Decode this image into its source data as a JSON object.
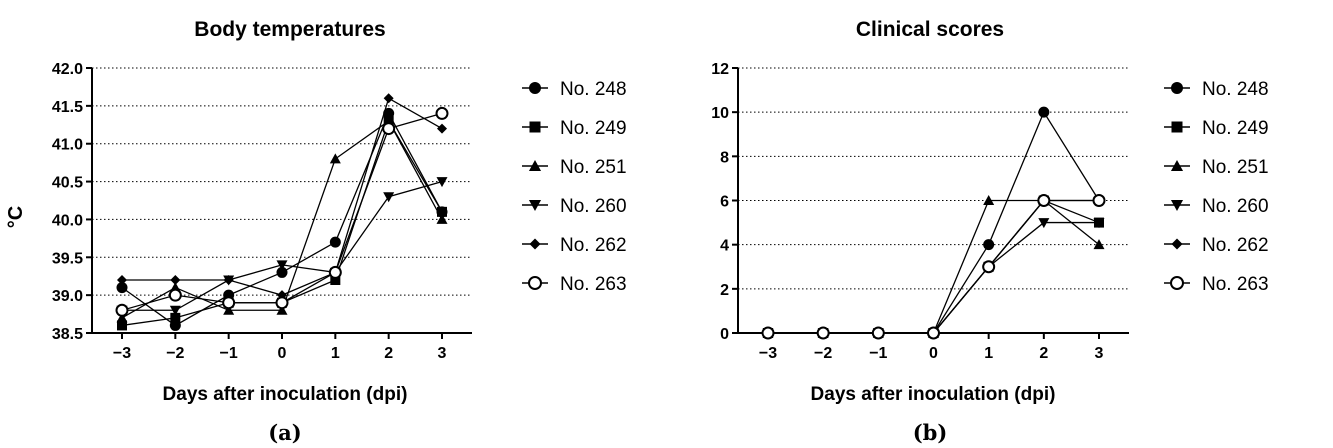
{
  "chart_data": [
    {
      "type": "line",
      "title": "Body temperatures",
      "xlabel": "Days after inoculation (dpi)",
      "ylabel": "°C",
      "caption": "(a)",
      "x": [
        -3,
        -2,
        -1,
        0,
        1,
        2,
        3
      ],
      "x_tick_labels": [
        "−3",
        "−2",
        "−1",
        "0",
        "1",
        "2",
        "3"
      ],
      "ylim": [
        38.5,
        42.0
      ],
      "y_ticks": [
        38.5,
        39.0,
        39.5,
        40.0,
        40.5,
        41.0,
        41.5,
        42.0
      ],
      "y_tick_labels": [
        "38.5",
        "39.0",
        "39.5",
        "40.0",
        "40.5",
        "41.0",
        "41.5",
        "42.0"
      ],
      "grid": "horizontal dotted",
      "legend_position": "right",
      "series": [
        {
          "name": "No. 248",
          "marker": "circle",
          "values": [
            39.1,
            38.6,
            39.0,
            39.3,
            39.7,
            41.4,
            40.1
          ]
        },
        {
          "name": "No. 249",
          "marker": "square",
          "values": [
            38.6,
            38.7,
            38.9,
            38.9,
            39.2,
            41.3,
            40.1
          ]
        },
        {
          "name": "No. 251",
          "marker": "triangle-up",
          "values": [
            38.7,
            39.1,
            38.8,
            38.8,
            40.8,
            41.3,
            40.0
          ]
        },
        {
          "name": "No. 260",
          "marker": "triangle-down",
          "values": [
            38.8,
            38.8,
            39.2,
            39.4,
            39.3,
            40.3,
            40.5
          ]
        },
        {
          "name": "No. 262",
          "marker": "diamond",
          "values": [
            39.2,
            39.2,
            39.2,
            39.0,
            39.3,
            41.6,
            41.2
          ]
        },
        {
          "name": "No. 263",
          "marker": "open-circle",
          "values": [
            38.8,
            39.0,
            38.9,
            38.9,
            39.3,
            41.2,
            41.4
          ]
        }
      ]
    },
    {
      "type": "line",
      "title": "Clinical scores",
      "xlabel": "Days after inoculation (dpi)",
      "ylabel": "",
      "caption": "(b)",
      "x": [
        -3,
        -2,
        -1,
        0,
        1,
        2,
        3
      ],
      "x_tick_labels": [
        "−3",
        "−2",
        "−1",
        "0",
        "1",
        "2",
        "3"
      ],
      "ylim": [
        0,
        12
      ],
      "y_ticks": [
        0,
        2,
        4,
        6,
        8,
        10,
        12
      ],
      "y_tick_labels": [
        "0",
        "2",
        "4",
        "6",
        "8",
        "10",
        "12"
      ],
      "grid": "horizontal dotted",
      "legend_position": "right",
      "series": [
        {
          "name": "No. 248",
          "marker": "circle",
          "values": [
            0,
            0,
            0,
            0,
            4,
            10,
            6
          ]
        },
        {
          "name": "No. 249",
          "marker": "square",
          "values": [
            0,
            0,
            0,
            0,
            3,
            6,
            5
          ]
        },
        {
          "name": "No. 251",
          "marker": "triangle-up",
          "values": [
            0,
            0,
            0,
            0,
            6,
            6,
            4
          ]
        },
        {
          "name": "No. 260",
          "marker": "triangle-down",
          "values": [
            0,
            0,
            0,
            0,
            3,
            5,
            5
          ]
        },
        {
          "name": "No. 262",
          "marker": "diamond",
          "values": [
            0,
            0,
            0,
            0,
            3,
            6,
            6
          ]
        },
        {
          "name": "No. 263",
          "marker": "open-circle",
          "values": [
            0,
            0,
            0,
            0,
            3,
            6,
            6
          ]
        }
      ]
    }
  ]
}
